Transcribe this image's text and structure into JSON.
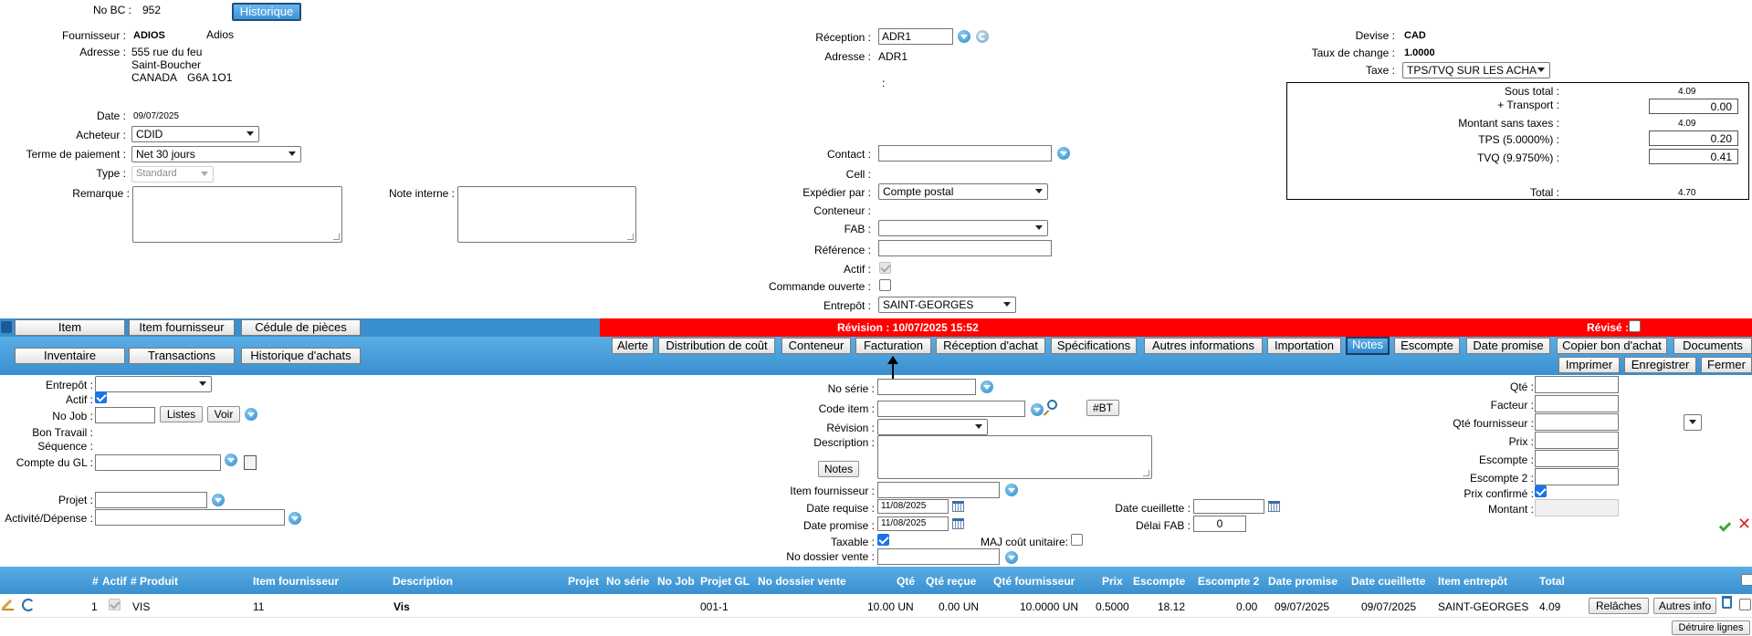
{
  "header": {
    "nobc_label": "No BC :",
    "nobc_value": "952",
    "historique_button": "Historique",
    "fournisseur_label": "Fournisseur :",
    "fournisseur_code": "ADIOS",
    "fournisseur_name": "Adios",
    "adresse_label": "Adresse :",
    "adresse_line1": "555 rue du feu",
    "adresse_line2": "Saint-Boucher",
    "adresse_country": "CANADA",
    "adresse_postal": "G6A 1O1",
    "date_label": "Date :",
    "date_value": "09/07/2025",
    "acheteur_label": "Acheteur :",
    "acheteur_value": "CDID",
    "terme_label": "Terme de paiement :",
    "terme_value": "Net 30 jours",
    "type_label": "Type :",
    "type_value": "Standard",
    "remarque_label": "Remarque :",
    "note_interne_label": "Note interne :"
  },
  "reception": {
    "reception_label": "Réception :",
    "reception_value": "ADR1",
    "adresse_label": "Adresse :",
    "adresse_value": "ADR1",
    "colon": ":",
    "contact_label": "Contact :",
    "cell_label": "Cell :",
    "expedier_label": "Expédier par :",
    "expedier_value": "Compte postal",
    "conteneur_label": "Conteneur :",
    "fab_label": "FAB :",
    "reference_label": "Référence :",
    "actif_label": "Actif :",
    "commande_label": "Commande ouverte :",
    "entrepot_label": "Entrepôt :",
    "entrepot_value": "SAINT-GEORGES"
  },
  "devise": {
    "devise_label": "Devise :",
    "devise_value": "CAD",
    "taux_label": "Taux de change :",
    "taux_value": "1.0000",
    "taxe_label": "Taxe :",
    "taxe_value": "TPS/TVQ SUR LES ACHA"
  },
  "totals": {
    "sous_total_label": "Sous total :",
    "sous_total_value": "4.09",
    "transport_label": "+ Transport :",
    "transport_value": "0.00",
    "sans_taxes_label": "Montant sans taxes :",
    "sans_taxes_value": "4.09",
    "tps_label": "TPS (5.0000%) :",
    "tps_value": "0.20",
    "tvq_label": "TVQ (9.9750%) :",
    "tvq_value": "0.41",
    "total_label": "Total :",
    "total_value": "4.70"
  },
  "toolbar": {
    "item": "Item",
    "item_fournisseur": "Item fournisseur",
    "cedule": "Cédule de pièces",
    "revision_text": "Révision : 10/07/2025 15:52",
    "revise_label": "Révisé :",
    "inventaire": "Inventaire",
    "transactions": "Transactions",
    "historique_achats": "Historique d'achats",
    "tabs": [
      "Alerte",
      "Distribution de coût",
      "Conteneur",
      "Facturation",
      "Réception d'achat",
      "Spécifications",
      "Autres informations",
      "Importation",
      "Notes",
      "Escompte",
      "Date promise",
      "Copier bon d'achat",
      "Documents"
    ],
    "imprimer": "Imprimer",
    "enregistrer": "Enregistrer",
    "fermer": "Fermer"
  },
  "line_form": {
    "entrepot_label": "Entrepôt :",
    "actif_label": "Actif :",
    "nojob_label": "No Job :",
    "listes_button": "Listes",
    "voir_button": "Voir",
    "bon_travail_label": "Bon Travail :",
    "sequence_label": "Séquence :",
    "compte_gl_label": "Compte du GL :",
    "projet_label": "Projet :",
    "activite_label": "Activité/Dépense :",
    "noserie_label": "No série :",
    "code_item_label": "Code item :",
    "bt_button": "#BT",
    "revision_label": "Révision :",
    "description_label": "Description :",
    "notes_button": "Notes",
    "item_fournisseur_label": "Item fournisseur :",
    "date_requise_label": "Date requise :",
    "date_requise_value": "11/08/2025",
    "date_promise_label": "Date promise :",
    "date_promise_value": "11/08/2025",
    "taxable_label": "Taxable :",
    "maj_label": "MAJ coût unitaire:",
    "no_dossier_label": "No dossier vente :",
    "date_cueillette_label": "Date cueillette :",
    "delai_fab_label": "Délai FAB :",
    "delai_fab_value": "0",
    "qte_label": "Qté :",
    "facteur_label": "Facteur :",
    "qte_fournisseur_label": "Qté fournisseur :",
    "prix_label": "Prix :",
    "escompte_label": "Escompte :",
    "escompte2_label": "Escompte 2 :",
    "prix_confirme_label": "Prix confirmé :",
    "montant_label": "Montant :"
  },
  "table": {
    "headers": [
      "#",
      "Actif",
      "# Produit",
      "Item fournisseur",
      "Description",
      "Projet",
      "No série",
      "No Job",
      "Projet GL",
      "No dossier vente",
      "Qté",
      "Qté reçue",
      "Qté fournisseur",
      "Prix",
      "Escompte",
      "Escompte 2",
      "Date promise",
      "Date cueillette",
      "Item entrepôt",
      "Total"
    ],
    "row": {
      "num": "1",
      "produit": "VIS",
      "item_fournisseur": "11",
      "description": "Vis",
      "projet_gl": "001-1",
      "qte": "10.00 UN",
      "qte_recue": "0.00 UN",
      "qte_fournisseur": "10.0000 UN",
      "prix": "0.5000",
      "escompte": "18.12",
      "escompte2": "0.00",
      "date_promise": "09/07/2025",
      "date_cueillette": "09/07/2025",
      "item_entrepot": "SAINT-GEORGES",
      "total": "4.09"
    },
    "relaches_button": "Relâches",
    "autres_info_button": "Autres info",
    "detruire_button": "Détruire lignes"
  },
  "colors": {
    "bar_blue": "#3a8fcf",
    "revision_red": "#ff0000",
    "active_tab": "#2e86cc"
  }
}
